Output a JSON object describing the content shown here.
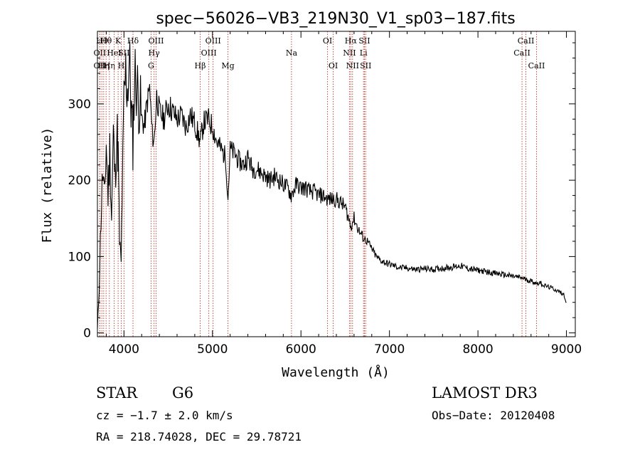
{
  "chart_data": {
    "type": "line",
    "title": "spec−56026−VB3_219N30_V1_sp03−187.fits",
    "xlabel": "Wavelength (Å)",
    "ylabel": "Flux (relative)",
    "xlim": [
      3700,
      9100
    ],
    "ylim": [
      -5,
      395
    ],
    "xticks": [
      4000,
      5000,
      6000,
      7000,
      8000,
      9000
    ],
    "yticks": [
      0,
      100,
      200,
      300
    ],
    "grid": false,
    "series": [
      {
        "name": "flux",
        "x": [
          3700,
          3720,
          3740,
          3760,
          3780,
          3800,
          3820,
          3840,
          3860,
          3880,
          3900,
          3920,
          3935,
          3950,
          3968,
          3980,
          4000,
          4020,
          4040,
          4060,
          4080,
          4101,
          4120,
          4140,
          4160,
          4180,
          4200,
          4230,
          4260,
          4290,
          4320,
          4340,
          4370,
          4400,
          4450,
          4500,
          4550,
          4600,
          4650,
          4700,
          4750,
          4800,
          4861,
          4900,
          4950,
          5000,
          5050,
          5100,
          5150,
          5175,
          5200,
          5250,
          5300,
          5350,
          5400,
          5450,
          5500,
          5550,
          5600,
          5650,
          5700,
          5750,
          5800,
          5850,
          5890,
          5950,
          6000,
          6050,
          6100,
          6150,
          6200,
          6250,
          6300,
          6350,
          6400,
          6450,
          6500,
          6563,
          6600,
          6650,
          6700,
          6750,
          6800,
          6850,
          6900,
          6950,
          7000,
          7050,
          7100,
          7150,
          7200,
          7300,
          7400,
          7500,
          7600,
          7700,
          7800,
          7900,
          8000,
          8100,
          8200,
          8300,
          8400,
          8500,
          8542,
          8600,
          8662,
          8700,
          8750,
          8800,
          8850,
          8900,
          8950,
          8970,
          9000
        ],
        "y": [
          5,
          60,
          150,
          210,
          170,
          250,
          180,
          240,
          150,
          260,
          200,
          270,
          230,
          120,
          90,
          180,
          300,
          340,
          320,
          360,
          300,
          250,
          340,
          330,
          310,
          300,
          280,
          270,
          300,
          320,
          260,
          250,
          310,
          290,
          280,
          300,
          290,
          280,
          285,
          270,
          285,
          275,
          250,
          275,
          280,
          270,
          250,
          240,
          230,
          175,
          240,
          235,
          225,
          220,
          230,
          215,
          215,
          210,
          205,
          200,
          205,
          200,
          195,
          190,
          180,
          195,
          190,
          190,
          185,
          185,
          180,
          180,
          175,
          175,
          175,
          170,
          165,
          140,
          150,
          135,
          125,
          120,
          110,
          100,
          95,
          92,
          90,
          88,
          86,
          85,
          85,
          83,
          84,
          83,
          85,
          86,
          88,
          84,
          82,
          80,
          78,
          76,
          74,
          72,
          70,
          68,
          65,
          66,
          62,
          60,
          58,
          55,
          52,
          50,
          40
        ]
      }
    ],
    "lines": [
      {
        "lambda": 3727,
        "label": "OII",
        "row": 2
      },
      {
        "lambda": 3727,
        "label": "OII",
        "row": 3
      },
      {
        "lambda": 3750,
        "label": "Hθ",
        "row": 1
      },
      {
        "lambda": 3771,
        "label": "Hη",
        "row": 3
      },
      {
        "lambda": 3798,
        "label": "Hθ",
        "row": 1
      },
      {
        "lambda": 3835,
        "label": "Hη",
        "row": 3
      },
      {
        "lambda": 3889,
        "label": "HeI",
        "row": 2
      },
      {
        "lambda": 3934,
        "label": "K",
        "row": 1
      },
      {
        "lambda": 3969,
        "label": "H",
        "row": 3
      },
      {
        "lambda": 4000,
        "label": "SII",
        "row": 2
      },
      {
        "lambda": 4102,
        "label": "Hδ",
        "row": 1
      },
      {
        "lambda": 4306,
        "label": "G",
        "row": 3
      },
      {
        "lambda": 4340,
        "label": "Hγ",
        "row": 2
      },
      {
        "lambda": 4363,
        "label": "OIII",
        "row": 1
      },
      {
        "lambda": 4861,
        "label": "Hβ",
        "row": 3
      },
      {
        "lambda": 4959,
        "label": "OIII",
        "row": 2
      },
      {
        "lambda": 5007,
        "label": "OIII",
        "row": 1
      },
      {
        "lambda": 5175,
        "label": "Mg",
        "row": 3
      },
      {
        "lambda": 5893,
        "label": "Na",
        "row": 2
      },
      {
        "lambda": 6300,
        "label": "OI",
        "row": 1
      },
      {
        "lambda": 6364,
        "label": "OI",
        "row": 3
      },
      {
        "lambda": 6548,
        "label": "NII",
        "row": 2
      },
      {
        "lambda": 6563,
        "label": "Hα",
        "row": 1
      },
      {
        "lambda": 6583,
        "label": "NII",
        "row": 3
      },
      {
        "lambda": 6707,
        "label": "Li",
        "row": 2
      },
      {
        "lambda": 6717,
        "label": "SII",
        "row": 1
      },
      {
        "lambda": 6731,
        "label": "SII",
        "row": 3
      },
      {
        "lambda": 8498,
        "label": "CaII",
        "row": 2
      },
      {
        "lambda": 8542,
        "label": "CaII",
        "row": 1
      },
      {
        "lambda": 8662,
        "label": "CaII",
        "row": 3
      }
    ]
  },
  "footer": {
    "class_label": "STAR",
    "subclass_label": "G6",
    "survey_label": "LAMOST DR3",
    "cz_text": "cz = −1.7 ± 2.0 km/s",
    "obs_date_text": "Obs−Date: 20120408",
    "coords_text": "RA = 218.74028, DEC =  29.78721"
  }
}
